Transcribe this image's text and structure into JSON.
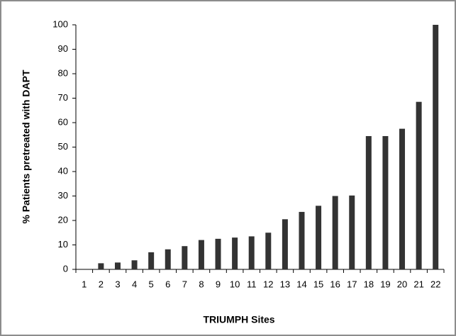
{
  "chart_data": {
    "type": "bar",
    "xlabel": "TRIUMPH Sites",
    "ylabel": "% Patients pretreated with DAPT",
    "categories": [
      "1",
      "2",
      "3",
      "4",
      "5",
      "6",
      "7",
      "8",
      "9",
      "10",
      "11",
      "12",
      "13",
      "14",
      "15",
      "16",
      "17",
      "18",
      "19",
      "20",
      "21",
      "22"
    ],
    "values": [
      0,
      2.5,
      2.8,
      3.7,
      7,
      8.2,
      9.5,
      12,
      12.5,
      13,
      13.5,
      15,
      20.5,
      23.5,
      26,
      30,
      30.2,
      54.5,
      54.5,
      57.5,
      68.5,
      100
    ],
    "color": "#333333",
    "ylim": [
      0,
      100
    ],
    "yticks": [
      0,
      10,
      20,
      30,
      40,
      50,
      60,
      70,
      80,
      90,
      100
    ],
    "grid": false
  }
}
